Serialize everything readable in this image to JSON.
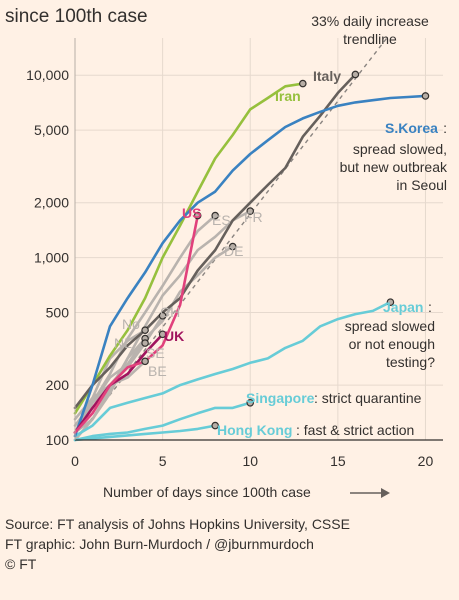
{
  "chart_data": {
    "type": "line",
    "title": "since 100th case",
    "xlabel": "Number of days since 100th case",
    "ylabel": "",
    "yscale": "log",
    "xlim": [
      0,
      21
    ],
    "ylim": [
      100,
      16000
    ],
    "x_ticks": [
      "0",
      "5",
      "10",
      "15",
      "20"
    ],
    "y_ticks": [
      "10,000",
      "5,000",
      "2,000",
      "1,000",
      "500",
      "200",
      "100"
    ],
    "grid": true,
    "trendline": {
      "label_lines": [
        "33% daily increase",
        "trendline"
      ],
      "daily_growth": 0.33,
      "start": [
        0,
        100
      ]
    },
    "annotations": {
      "skorea": [
        "spread slowed,",
        "but new outbreak",
        "in Seoul"
      ],
      "japan": [
        "spread slowed",
        "or not enough",
        "testing?"
      ],
      "singapore": "strict quarantine",
      "hongkong": "fast & strict action"
    },
    "series": [
      {
        "key": "italy",
        "name": "Italy",
        "color": "#66605C",
        "label_bold": true,
        "x": [
          0,
          1,
          2,
          3,
          4,
          5,
          6,
          7,
          8,
          9,
          10,
          11,
          12,
          13,
          14,
          15,
          16
        ],
        "y": [
          150,
          200,
          250,
          330,
          400,
          500,
          600,
          850,
          1100,
          1600,
          2000,
          2500,
          3100,
          4600,
          6000,
          8000,
          10100
        ]
      },
      {
        "key": "iran",
        "name": "Iran",
        "color": "#96C03D",
        "label_bold": true,
        "x": [
          0,
          1,
          2,
          3,
          4,
          5,
          6,
          7,
          8,
          9,
          10,
          11,
          12,
          13
        ],
        "y": [
          140,
          200,
          290,
          400,
          600,
          1000,
          1500,
          2300,
          3500,
          4700,
          6500,
          7500,
          8700,
          9000
        ]
      },
      {
        "key": "skorea",
        "name": "S.Korea",
        "color": "#3A82C1",
        "label_bold": true,
        "x": [
          0,
          1,
          2,
          3,
          4,
          5,
          6,
          7,
          8,
          9,
          10,
          11,
          12,
          13,
          14,
          15,
          16,
          17,
          18,
          19,
          20
        ],
        "y": [
          105,
          200,
          420,
          600,
          830,
          1200,
          1600,
          2000,
          2300,
          3000,
          3700,
          4400,
          5200,
          5800,
          6300,
          6800,
          7100,
          7300,
          7500,
          7600,
          7700
        ]
      },
      {
        "key": "us",
        "name": "US",
        "color": "#E1417C",
        "label_bold": true,
        "x": [
          0,
          1,
          2,
          3,
          4,
          5,
          6,
          7
        ],
        "y": [
          110,
          140,
          200,
          250,
          270,
          330,
          550,
          1700
        ]
      },
      {
        "key": "uk",
        "name": "UK",
        "color": "#A0145E",
        "label_bold": true,
        "x": [
          0,
          1,
          2,
          3,
          4,
          5
        ],
        "y": [
          110,
          150,
          200,
          230,
          300,
          380
        ]
      },
      {
        "key": "spain",
        "name": "ES",
        "color": "#B9B3AE",
        "label_bold": false,
        "x": [
          0,
          1,
          2,
          3,
          4,
          5,
          6,
          7,
          8
        ],
        "y": [
          120,
          160,
          230,
          360,
          500,
          700,
          1000,
          1400,
          1700
        ]
      },
      {
        "key": "france",
        "name": "FR",
        "color": "#B9B3AE",
        "label_bold": false,
        "x": [
          0,
          1,
          2,
          3,
          4,
          5,
          6,
          7,
          8,
          9,
          10
        ],
        "y": [
          100,
          130,
          190,
          280,
          420,
          620,
          800,
          1100,
          1300,
          1600,
          1800
        ]
      },
      {
        "key": "germany",
        "name": "DE",
        "color": "#B9B3AE",
        "label_bold": false,
        "x": [
          0,
          1,
          2,
          3,
          4,
          5,
          6,
          7,
          8,
          9
        ],
        "y": [
          130,
          170,
          200,
          260,
          360,
          450,
          650,
          800,
          1000,
          1150
        ]
      },
      {
        "key": "switzerland",
        "name": "CH",
        "color": "#B9B3AE",
        "label_bold": false,
        "x": [
          0,
          1,
          2,
          3,
          4,
          5
        ],
        "y": [
          110,
          160,
          220,
          260,
          340,
          480
        ]
      },
      {
        "key": "norway",
        "name": "No",
        "color": "#B9B3AE",
        "label_bold": false,
        "x": [
          0,
          1,
          2,
          3,
          4
        ],
        "y": [
          110,
          170,
          280,
          350,
          400
        ]
      },
      {
        "key": "netherlands",
        "name": "NL",
        "color": "#B9B3AE",
        "label_bold": false,
        "x": [
          0,
          1,
          2,
          3,
          4
        ],
        "y": [
          110,
          130,
          180,
          280,
          360
        ]
      },
      {
        "key": "sweden",
        "name": "SE",
        "color": "#B9B3AE",
        "label_bold": false,
        "x": [
          0,
          1,
          2,
          3,
          4
        ],
        "y": [
          110,
          160,
          200,
          250,
          340
        ]
      },
      {
        "key": "belgium",
        "name": "BE",
        "color": "#B9B3AE",
        "label_bold": false,
        "x": [
          0,
          1,
          2,
          3,
          4
        ],
        "y": [
          110,
          160,
          200,
          220,
          270
        ]
      },
      {
        "key": "japan",
        "name": "Japan",
        "color": "#67CCD7",
        "label_bold": true,
        "x": [
          0,
          1,
          2,
          3,
          4,
          5,
          6,
          7,
          8,
          9,
          10,
          11,
          12,
          13,
          14,
          15,
          16,
          17,
          18
        ],
        "y": [
          105,
          120,
          150,
          160,
          170,
          180,
          200,
          215,
          230,
          245,
          265,
          280,
          320,
          350,
          420,
          460,
          490,
          510,
          570
        ]
      },
      {
        "key": "singapore",
        "name": "Singapore",
        "color": "#67CCD7",
        "label_bold": true,
        "x": [
          0,
          1,
          2,
          3,
          4,
          5,
          6,
          7,
          8,
          9,
          10
        ],
        "y": [
          100,
          105,
          108,
          110,
          115,
          120,
          130,
          140,
          150,
          150,
          160
        ]
      },
      {
        "key": "hongkong",
        "name": "Hong Kong",
        "color": "#67CCD7",
        "label_bold": true,
        "x": [
          0,
          1,
          2,
          3,
          4,
          5,
          6,
          7,
          8
        ],
        "y": [
          100,
          102,
          104,
          106,
          108,
          110,
          112,
          115,
          120
        ]
      }
    ]
  },
  "footer": {
    "source": "Source: FT analysis of Johns Hopkins University, CSSE",
    "credit": "FT graphic: John Burn-Murdoch / @jburnmurdoch",
    "copyright": "© FT"
  }
}
